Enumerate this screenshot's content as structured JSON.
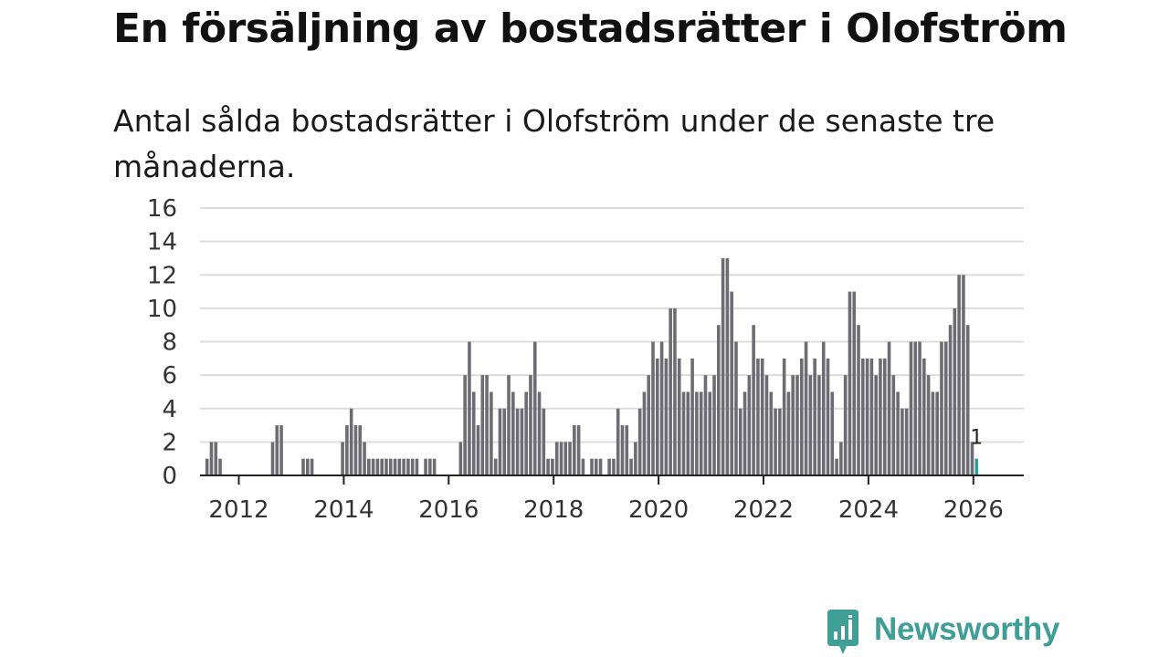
{
  "title": "En försäljning av bostadsrätter i Olofström",
  "subtitle": "Antal sålda bostadsrätter i Olofström under de senaste tre månaderna.",
  "brand": {
    "name": "Newsworthy",
    "color": "#3f9e95"
  },
  "chart_data": {
    "type": "bar",
    "title": "En försäljning av bostadsrätter i Olofström",
    "subtitle": "Antal sålda bostadsrätter i Olofström under de senaste tre månaderna.",
    "xlabel": "",
    "ylabel": "",
    "ylim": [
      0,
      16
    ],
    "yticks": [
      0,
      2,
      4,
      6,
      8,
      10,
      12,
      14,
      16
    ],
    "xticks": [
      "2012",
      "2014",
      "2016",
      "2018",
      "2020",
      "2022",
      "2024",
      "2026"
    ],
    "start": "2012-01",
    "grid": true,
    "colors": {
      "bar": "#6d6c72",
      "highlight": "#2e9e94"
    },
    "highlight_label": "1",
    "values": [
      0,
      1,
      2,
      2,
      1,
      0,
      0,
      0,
      0,
      0,
      0,
      0,
      0,
      0,
      0,
      0,
      2,
      3,
      3,
      0,
      0,
      0,
      0,
      1,
      1,
      1,
      0,
      0,
      0,
      0,
      0,
      0,
      2,
      3,
      4,
      3,
      3,
      2,
      1,
      1,
      1,
      1,
      1,
      1,
      1,
      1,
      1,
      1,
      1,
      1,
      0,
      1,
      1,
      1,
      0,
      0,
      0,
      0,
      0,
      2,
      6,
      8,
      5,
      3,
      6,
      6,
      5,
      1,
      4,
      4,
      6,
      5,
      4,
      4,
      5,
      6,
      8,
      5,
      4,
      1,
      1,
      2,
      2,
      2,
      2,
      3,
      3,
      1,
      0,
      1,
      1,
      1,
      0,
      1,
      1,
      4,
      3,
      3,
      1,
      2,
      4,
      5,
      6,
      8,
      7,
      8,
      7,
      10,
      10,
      7,
      5,
      5,
      7,
      5,
      5,
      6,
      5,
      6,
      9,
      13,
      13,
      11,
      8,
      4,
      5,
      6,
      9,
      7,
      7,
      6,
      5,
      4,
      4,
      7,
      5,
      6,
      6,
      7,
      8,
      6,
      7,
      6,
      8,
      7,
      5,
      1,
      2,
      6,
      11,
      11,
      9,
      7,
      7,
      7,
      6,
      7,
      7,
      8,
      6,
      5,
      4,
      4,
      8,
      8,
      8,
      7,
      6,
      5,
      5,
      8,
      8,
      9,
      10,
      12,
      12,
      9,
      2,
      1
    ]
  }
}
